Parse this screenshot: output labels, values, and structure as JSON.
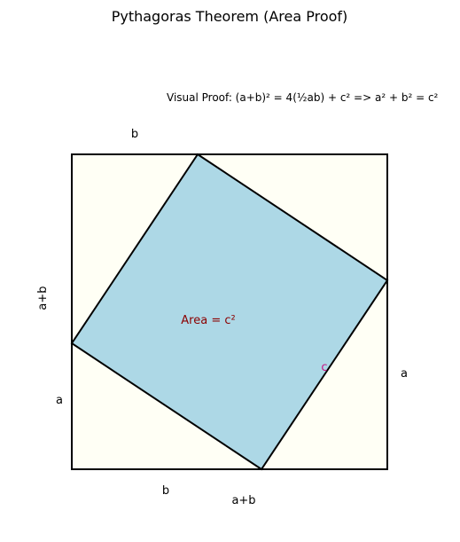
{
  "title": "Pythagoras Theorem (Area Proof)",
  "subtitle": "Visual Proof: (a+b)² = 4(½ab) + c² => a² + b² = c²",
  "labels": {
    "top_b": "b",
    "left_a_plus_b": "a+b",
    "left_a": "a",
    "right_a": "a",
    "bottom_b": "b",
    "bottom_a_plus_b": "a+b",
    "inner_area": "Area = c²",
    "hypotenuse_c": "c"
  },
  "colors": {
    "outer_square_fill": "#fffff5",
    "inner_square_fill": "#add8e6",
    "stroke": "#000000",
    "area_text": "#8b0000",
    "c_label": "#c71585"
  }
}
